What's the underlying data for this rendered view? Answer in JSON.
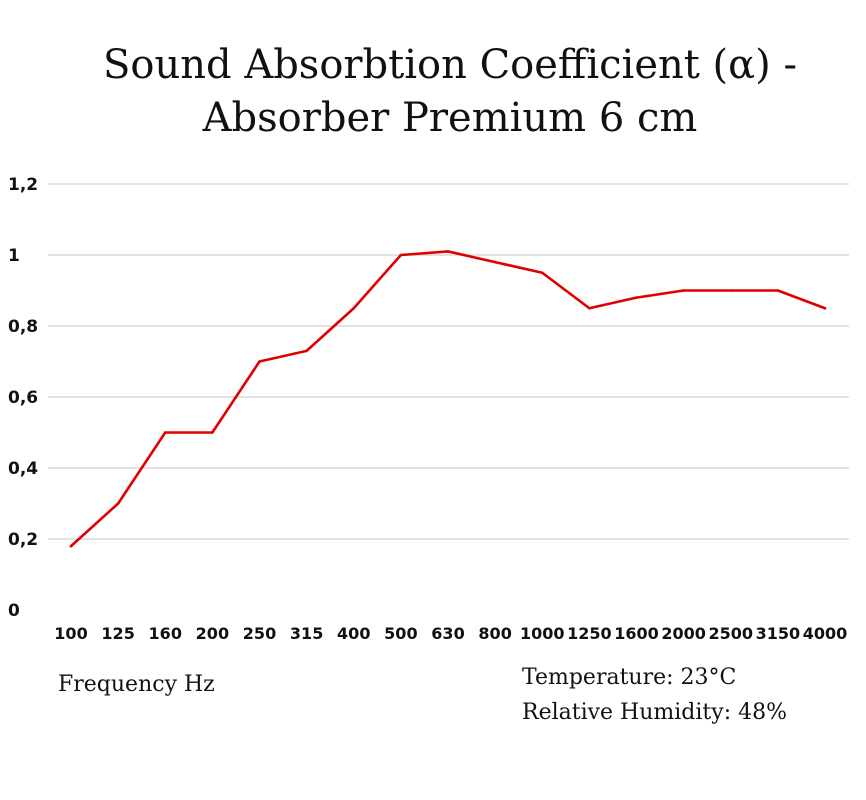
{
  "chart_data": {
    "type": "line",
    "title_lines": [
      "Sound Absorbtion Coefficient (α) -",
      "Absorber Premium 6 cm"
    ],
    "xlabel": "Frequency Hz",
    "ylabel": "",
    "categories": [
      "100",
      "125",
      "160",
      "200",
      "250",
      "315",
      "400",
      "500",
      "630",
      "800",
      "1000",
      "1250",
      "1600",
      "2000",
      "2500",
      "3150",
      "4000"
    ],
    "series": [
      {
        "values": [
          0.18,
          0.3,
          0.5,
          0.5,
          0.7,
          0.73,
          0.85,
          1.0,
          1.01,
          0.98,
          0.95,
          0.85,
          0.88,
          0.9,
          0.9,
          0.9,
          0.85
        ]
      }
    ],
    "y_ticks": [
      {
        "value": 0,
        "label": "0"
      },
      {
        "value": 0.2,
        "label": "0,2"
      },
      {
        "value": 0.4,
        "label": "0,4"
      },
      {
        "value": 0.6,
        "label": "0,6"
      },
      {
        "value": 0.8,
        "label": "0,8"
      },
      {
        "value": 1.0,
        "label": "1"
      },
      {
        "value": 1.2,
        "label": "1,2"
      }
    ],
    "ylim": [
      0,
      1.2
    ],
    "grid": true,
    "legend": "none",
    "annotations": [
      "Temperature: 23°C",
      "Relative Humidity: 48%"
    ]
  },
  "colors": {
    "line": "#e00000",
    "grid": "#d9d9d9",
    "text": "#111111"
  }
}
